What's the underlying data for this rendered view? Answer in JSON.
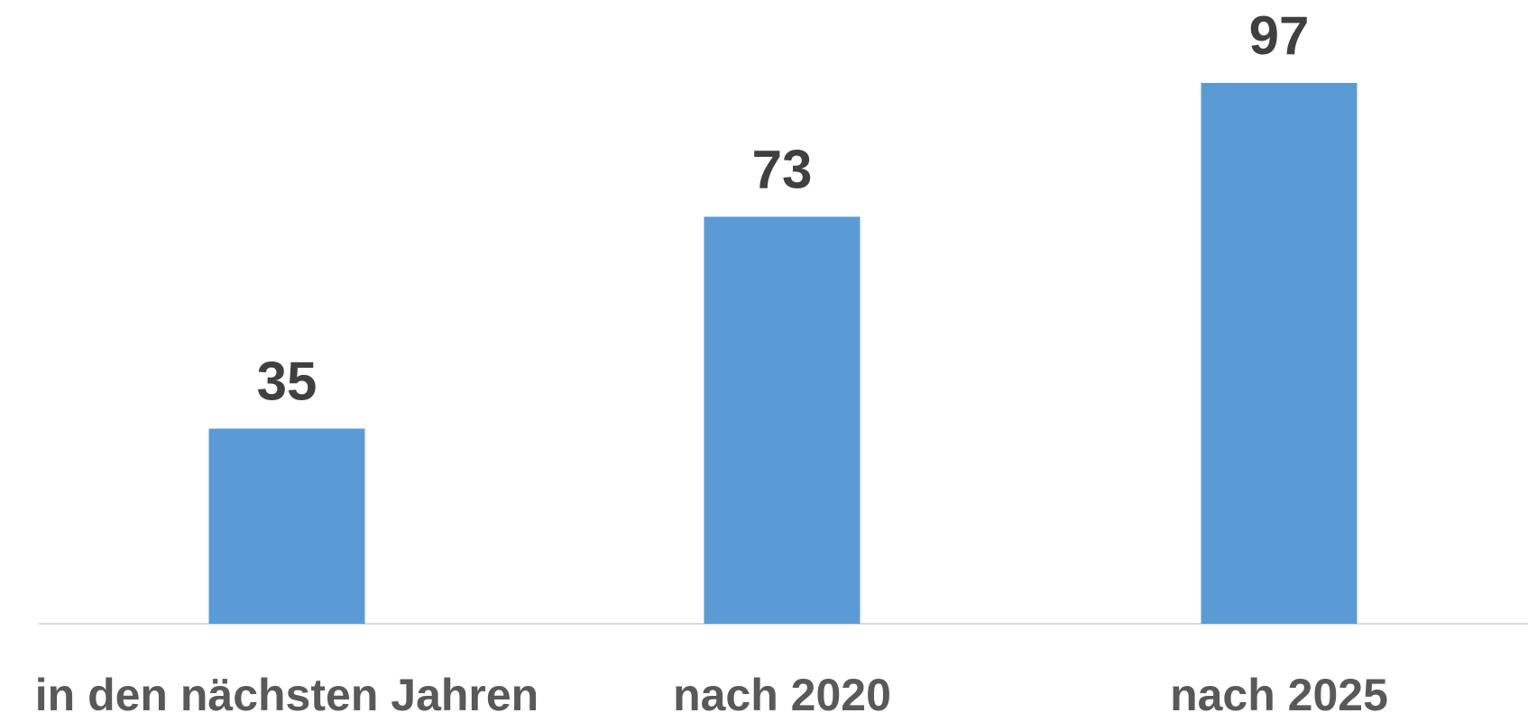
{
  "chart_data": {
    "type": "bar",
    "categories": [
      "in den nächsten Jahren",
      "nach 2020",
      "nach 2025"
    ],
    "values": [
      35,
      73,
      97
    ],
    "color": "#5b9bd5"
  }
}
